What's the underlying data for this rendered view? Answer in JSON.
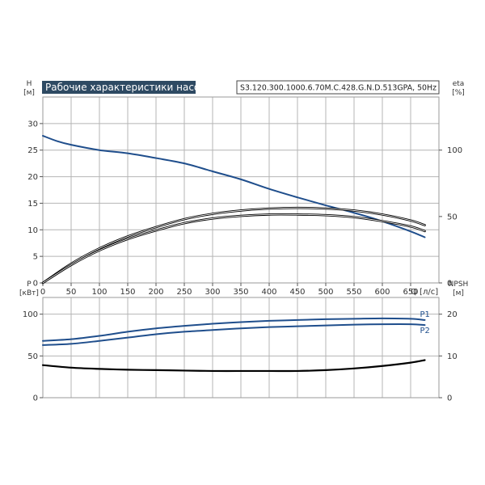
{
  "chart_data": [
    {
      "type": "line",
      "title": "Рабочие характеристики насоса",
      "subtitle": "S3.120.300.1000.6.70M.C.428.G.N.D.513GPA, 50Hz",
      "xlabel": "Q [л/с]",
      "ylabel": "H\n[м]",
      "y2label": "eta\n[%]",
      "xlim": [
        0,
        700
      ],
      "ylim": [
        0,
        35
      ],
      "y2lim": [
        0,
        140
      ],
      "xticks": [
        "0",
        "50",
        "100",
        "150",
        "200",
        "250",
        "300",
        "350",
        "400",
        "450",
        "500",
        "550",
        "600",
        "650"
      ],
      "yticks": [
        "0",
        "5",
        "10",
        "15",
        "20",
        "25",
        "30"
      ],
      "y2ticks": [
        "0",
        "50",
        "100"
      ],
      "grid": true,
      "series": [
        {
          "axis": "left",
          "color": "#1f4e8c",
          "x": [
            0,
            25,
            50,
            100,
            150,
            200,
            250,
            300,
            350,
            400,
            450,
            500,
            550,
            600,
            650,
            675
          ],
          "y": [
            27.7,
            26.7,
            26.0,
            25.0,
            24.4,
            23.5,
            22.5,
            21.0,
            19.5,
            17.7,
            16.1,
            14.6,
            13.2,
            11.6,
            9.7,
            8.6
          ]
        },
        {
          "axis": "right",
          "color": "#000000",
          "x": [
            0,
            50,
            100,
            150,
            200,
            250,
            300,
            350,
            400,
            450,
            500,
            550,
            600,
            650,
            675
          ],
          "y": [
            0,
            14.5,
            26,
            35,
            42,
            48,
            52,
            54.5,
            56,
            56.5,
            56,
            54.5,
            51.5,
            47,
            43.5
          ]
        },
        {
          "axis": "right",
          "color": "#000000",
          "x": [
            0,
            50,
            100,
            150,
            200,
            250,
            300,
            350,
            400,
            450,
            500,
            550,
            600,
            650,
            675
          ],
          "y": [
            0,
            13.5,
            24.5,
            33,
            39.5,
            45,
            48.5,
            50.5,
            51.5,
            51.5,
            51,
            49.5,
            46.5,
            42.5,
            39
          ]
        }
      ]
    },
    {
      "type": "line",
      "xlabel": "",
      "ylabel": "P\n[кВт]",
      "y2label": "NPSH\n[м]",
      "xlim": [
        0,
        700
      ],
      "ylim": [
        0,
        120
      ],
      "y2lim": [
        0,
        24
      ],
      "yticks": [
        "0",
        "50",
        "100"
      ],
      "y2ticks": [
        "0",
        "10",
        "20"
      ],
      "grid": true,
      "series": [
        {
          "name": "P1",
          "axis": "left",
          "color": "#1f4e8c",
          "x": [
            0,
            50,
            100,
            150,
            200,
            250,
            300,
            350,
            400,
            450,
            500,
            550,
            600,
            650,
            675
          ],
          "y": [
            68,
            70,
            74,
            79,
            83,
            86,
            88.5,
            90.5,
            92,
            93,
            94,
            94.5,
            95,
            94.5,
            93
          ]
        },
        {
          "name": "P2",
          "axis": "left",
          "color": "#1f4e8c",
          "x": [
            0,
            50,
            100,
            150,
            200,
            250,
            300,
            350,
            400,
            450,
            500,
            550,
            600,
            650,
            675
          ],
          "y": [
            63,
            64.5,
            68,
            72,
            76,
            79,
            81,
            83,
            84.5,
            85.5,
            86.5,
            87.5,
            88,
            88,
            87
          ]
        },
        {
          "axis": "right",
          "color": "#000000",
          "x": [
            0,
            50,
            100,
            150,
            200,
            250,
            300,
            350,
            400,
            450,
            500,
            550,
            600,
            650,
            675
          ],
          "y": [
            7.8,
            7.2,
            6.9,
            6.7,
            6.6,
            6.5,
            6.4,
            6.4,
            6.4,
            6.4,
            6.6,
            7.0,
            7.6,
            8.4,
            9.0
          ]
        }
      ]
    }
  ]
}
